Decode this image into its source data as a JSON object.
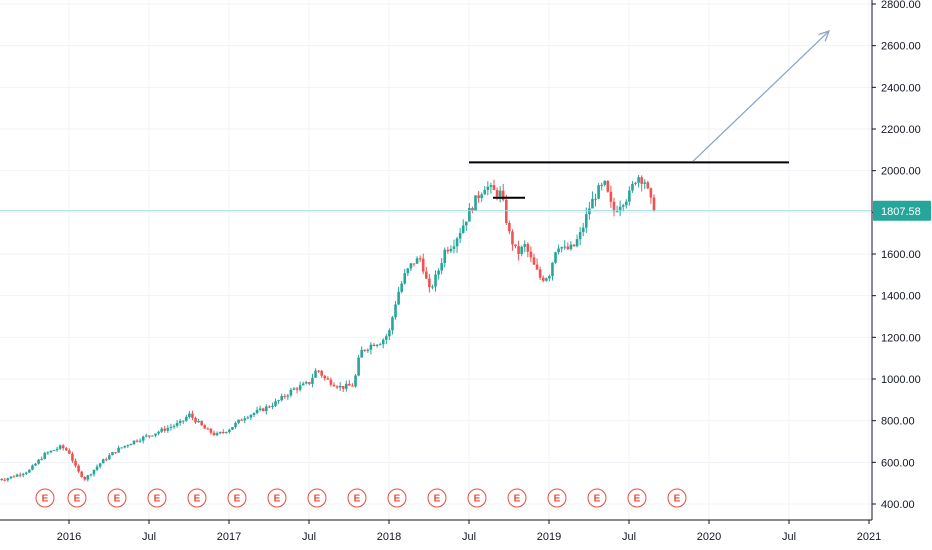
{
  "chart_data": {
    "type": "candlestick",
    "title": "",
    "xlabel": "",
    "ylabel": "",
    "ylim": [
      370,
      2800
    ],
    "y_ticks": [
      "2800.00",
      "2600.00",
      "2400.00",
      "2200.00",
      "2000.00",
      "1800.00",
      "1600.00",
      "1400.00",
      "1200.00",
      "1000.00",
      "800.00",
      "600.00",
      "400.00"
    ],
    "x_ticks": [
      "2016",
      "Jul",
      "2017",
      "Jul",
      "2018",
      "Jul",
      "2019",
      "Jul",
      "2020",
      "Jul",
      "2021"
    ],
    "last_price": "1807.58",
    "price_path": [
      [
        2015.6,
        520
      ],
      [
        2015.75,
        560
      ],
      [
        2015.85,
        640
      ],
      [
        2015.95,
        675
      ],
      [
        2016.0,
        650
      ],
      [
        2016.05,
        560
      ],
      [
        2016.1,
        520
      ],
      [
        2016.2,
        600
      ],
      [
        2016.3,
        660
      ],
      [
        2016.4,
        700
      ],
      [
        2016.5,
        730
      ],
      [
        2016.6,
        760
      ],
      [
        2016.7,
        790
      ],
      [
        2016.75,
        830
      ],
      [
        2016.85,
        760
      ],
      [
        2016.92,
        730
      ],
      [
        2017.0,
        760
      ],
      [
        2017.1,
        820
      ],
      [
        2017.2,
        850
      ],
      [
        2017.3,
        890
      ],
      [
        2017.4,
        950
      ],
      [
        2017.5,
        980
      ],
      [
        2017.55,
        1050
      ],
      [
        2017.6,
        1000
      ],
      [
        2017.7,
        960
      ],
      [
        2017.78,
        970
      ],
      [
        2017.82,
        1130
      ],
      [
        2017.9,
        1170
      ],
      [
        2017.95,
        1180
      ],
      [
        2018.0,
        1220
      ],
      [
        2018.05,
        1400
      ],
      [
        2018.1,
        1500
      ],
      [
        2018.15,
        1560
      ],
      [
        2018.2,
        1580
      ],
      [
        2018.25,
        1420
      ],
      [
        2018.3,
        1500
      ],
      [
        2018.35,
        1620
      ],
      [
        2018.4,
        1650
      ],
      [
        2018.45,
        1720
      ],
      [
        2018.5,
        1800
      ],
      [
        2018.55,
        1870
      ],
      [
        2018.6,
        1930
      ],
      [
        2018.65,
        1900
      ],
      [
        2018.7,
        1890
      ],
      [
        2018.75,
        1700
      ],
      [
        2018.8,
        1600
      ],
      [
        2018.85,
        1640
      ],
      [
        2018.9,
        1550
      ],
      [
        2018.95,
        1480
      ],
      [
        2019.0,
        1500
      ],
      [
        2019.05,
        1650
      ],
      [
        2019.1,
        1620
      ],
      [
        2019.15,
        1630
      ],
      [
        2019.2,
        1700
      ],
      [
        2019.25,
        1820
      ],
      [
        2019.3,
        1900
      ],
      [
        2019.35,
        1930
      ],
      [
        2019.4,
        1800
      ],
      [
        2019.45,
        1850
      ],
      [
        2019.5,
        1880
      ],
      [
        2019.55,
        1980
      ],
      [
        2019.6,
        1950
      ],
      [
        2019.63,
        1860
      ],
      [
        2019.66,
        1807.58
      ]
    ],
    "resistance_level": 2040,
    "resistance_range": [
      2018.5,
      2020.5
    ],
    "small_level": 1870,
    "small_level_range": [
      2018.65,
      2018.85
    ],
    "arrow": {
      "from": [
        2019.9,
        2045
      ],
      "to": [
        2020.75,
        2670
      ]
    },
    "earnings_marker_label": "E",
    "earnings_markers": [
      2015.85,
      2016.05,
      2016.3,
      2016.55,
      2016.8,
      2017.05,
      2017.3,
      2017.55,
      2017.8,
      2018.05,
      2018.3,
      2018.55,
      2018.8,
      2019.05,
      2019.3,
      2019.55,
      2019.8
    ]
  },
  "colors": {
    "up": "#26a69a",
    "down": "#ef5350",
    "grid": "#f0f3fa",
    "axis": "#131722",
    "price_line": "#9fd7e4",
    "arrow": "#8fa3c9",
    "earnings": "#e74c3c"
  }
}
